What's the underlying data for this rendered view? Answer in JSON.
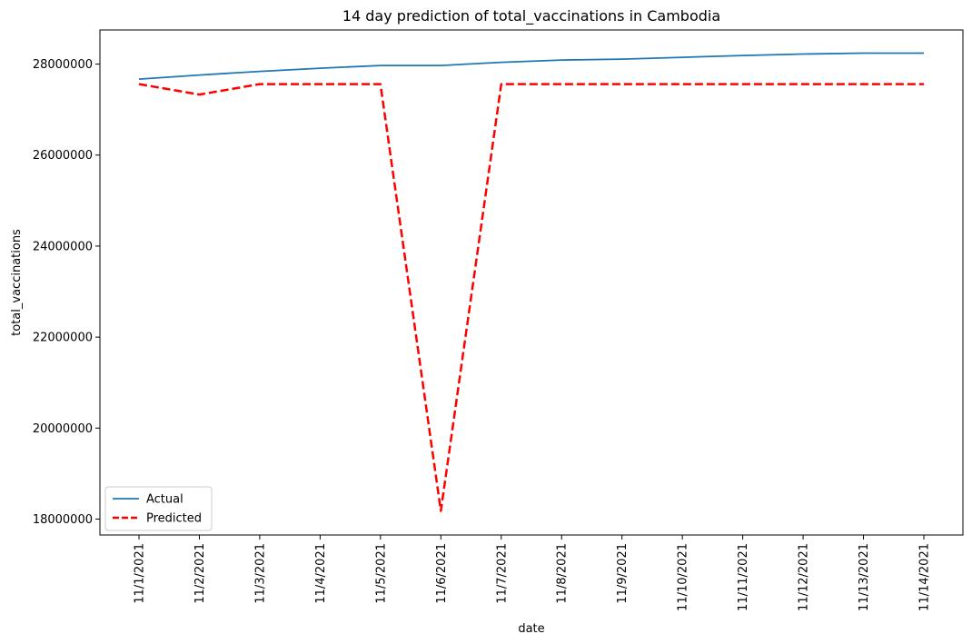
{
  "chart_data": {
    "type": "line",
    "title": "14 day prediction of total_vaccinations in Cambodia",
    "xlabel": "date",
    "ylabel": "total_vaccinations",
    "categories": [
      "11/1/2021",
      "11/2/2021",
      "11/3/2021",
      "11/4/2021",
      "11/5/2021",
      "11/6/2021",
      "11/7/2021",
      "11/8/2021",
      "11/9/2021",
      "11/10/2021",
      "11/11/2021",
      "11/12/2021",
      "11/13/2021",
      "11/14/2021"
    ],
    "yticks": [
      "18000000",
      "20000000",
      "22000000",
      "24000000",
      "26000000",
      "28000000"
    ],
    "ylim": [
      17650000,
      28750000
    ],
    "grid": false,
    "legend_position": "lower-left",
    "series": [
      {
        "name": "Actual",
        "color": "#1f77b4",
        "style": "solid",
        "values": [
          27670000,
          27760000,
          27840000,
          27910000,
          27970000,
          27970000,
          28040000,
          28090000,
          28110000,
          28150000,
          28190000,
          28220000,
          28240000,
          28240000
        ]
      },
      {
        "name": "Predicted",
        "color": "#ff0000",
        "style": "dashed",
        "values": [
          27560000,
          27330000,
          27560000,
          27560000,
          27560000,
          18180000,
          27560000,
          27560000,
          27560000,
          27560000,
          27560000,
          27560000,
          27560000,
          27560000
        ]
      }
    ]
  }
}
